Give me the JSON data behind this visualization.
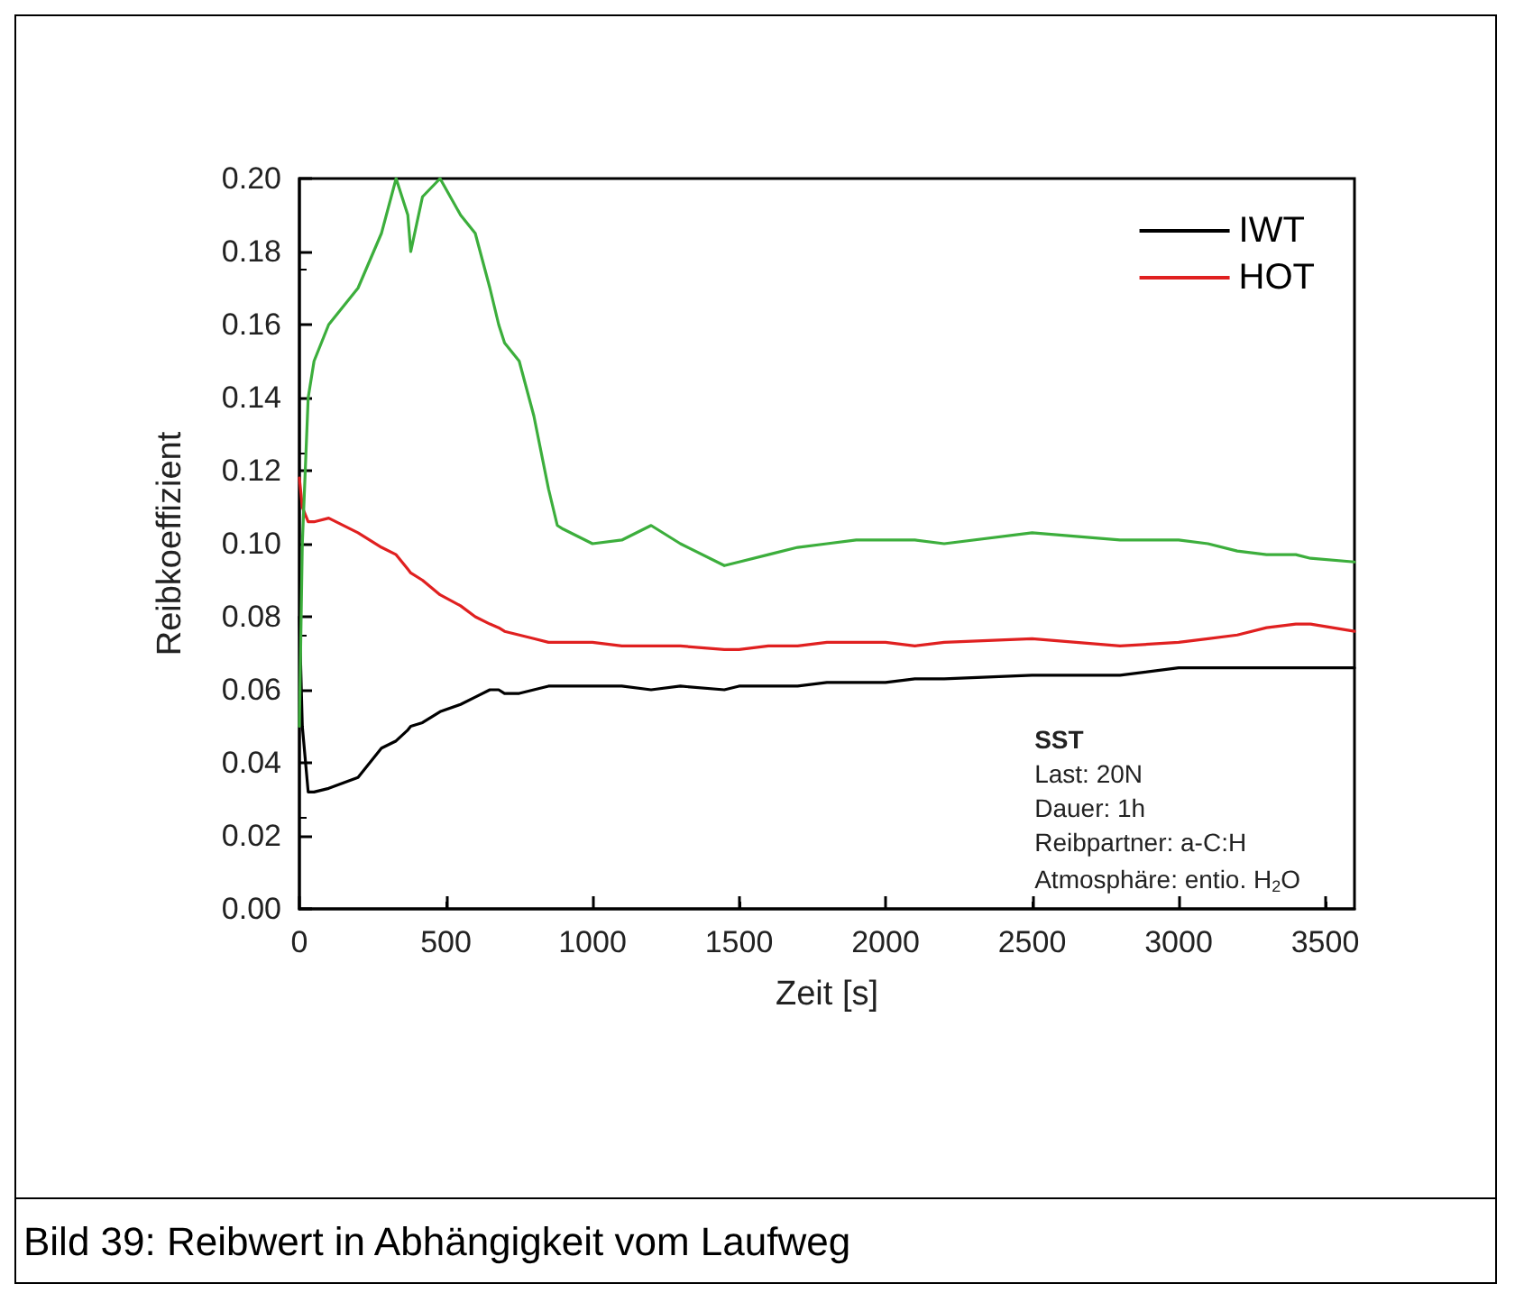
{
  "chart_data": {
    "type": "line",
    "xlabel": "Zeit [s]",
    "ylabel": "Reibkoeffizient",
    "xlim": [
      0,
      3600
    ],
    "xticks": [
      0,
      500,
      1000,
      1500,
      2000,
      2500,
      3000,
      3500
    ],
    "ylim": [
      0,
      0.2
    ],
    "yticks": [
      {
        "value": 0,
        "label": "0.00"
      },
      {
        "value": 0.02,
        "label": "0.02"
      },
      {
        "value": 0.04,
        "label": "0.04"
      },
      {
        "value": 0.06,
        "label": "0.06"
      },
      {
        "value": 0.08,
        "label": "0.08"
      },
      {
        "value": 0.1,
        "label": "0.10"
      },
      {
        "value": 0.12,
        "label": "0.12"
      },
      {
        "value": 0.14,
        "label": "0.14"
      },
      {
        "value": 0.16,
        "label": "0.16"
      },
      {
        "value": 0.18,
        "label": "0.18"
      },
      {
        "value": 0.2,
        "label": "0.20"
      }
    ],
    "grid": false,
    "legend": "top right",
    "marker": "none",
    "line_style": "solid",
    "x": [
      0,
      10,
      30,
      50,
      100,
      200,
      280,
      330,
      370,
      380,
      420,
      480,
      550,
      600,
      650,
      680,
      700,
      750,
      800,
      850,
      880,
      900,
      1000,
      1100,
      1200,
      1300,
      1450,
      1500,
      1600,
      1700,
      1800,
      1900,
      2000,
      2100,
      2200,
      2500,
      2800,
      3000,
      3100,
      3200,
      3300,
      3400,
      3450,
      3600
    ],
    "series": [
      {
        "name": "IWT",
        "color": "#000000",
        "values": [
          0.08,
          0.05,
          0.032,
          0.032,
          0.033,
          0.036,
          0.044,
          0.046,
          0.049,
          0.05,
          0.051,
          0.054,
          0.056,
          0.058,
          0.06,
          0.06,
          0.059,
          0.059,
          0.06,
          0.061,
          0.061,
          0.061,
          0.061,
          0.061,
          0.06,
          0.061,
          0.06,
          0.061,
          0.061,
          0.061,
          0.062,
          0.062,
          0.062,
          0.063,
          0.063,
          0.064,
          0.064,
          0.066,
          0.066,
          0.066,
          0.066,
          0.066,
          0.066,
          0.066
        ]
      },
      {
        "name": "HOT",
        "color": "#e02020",
        "values": [
          0.118,
          0.11,
          0.106,
          0.106,
          0.107,
          0.103,
          0.099,
          0.097,
          0.093,
          0.092,
          0.09,
          0.086,
          0.083,
          0.08,
          0.078,
          0.077,
          0.076,
          0.075,
          0.074,
          0.073,
          0.073,
          0.073,
          0.073,
          0.072,
          0.072,
          0.072,
          0.071,
          0.071,
          0.072,
          0.072,
          0.073,
          0.073,
          0.073,
          0.072,
          0.073,
          0.074,
          0.072,
          0.073,
          0.074,
          0.075,
          0.077,
          0.078,
          0.078,
          0.076
        ]
      },
      {
        "color": "#3cae3c",
        "values": [
          0.05,
          0.1,
          0.14,
          0.15,
          0.16,
          0.17,
          0.185,
          0.2,
          0.19,
          0.18,
          0.195,
          0.2,
          0.19,
          0.185,
          0.17,
          0.16,
          0.155,
          0.15,
          0.135,
          0.115,
          0.105,
          0.104,
          0.1,
          0.101,
          0.105,
          0.1,
          0.094,
          0.095,
          0.097,
          0.099,
          0.1,
          0.101,
          0.101,
          0.101,
          0.1,
          0.103,
          0.101,
          0.101,
          0.1,
          0.098,
          0.097,
          0.097,
          0.096,
          0.095
        ]
      }
    ],
    "annotations": [
      "SST",
      "Last: 20N",
      "Dauer: 1h",
      "Reibpartner: a-C:H",
      "Atmosphäre: entio. H$_{2}$O",
      "Bild 39: Reibwert in Abhängigkeit vom Laufweg"
    ]
  }
}
